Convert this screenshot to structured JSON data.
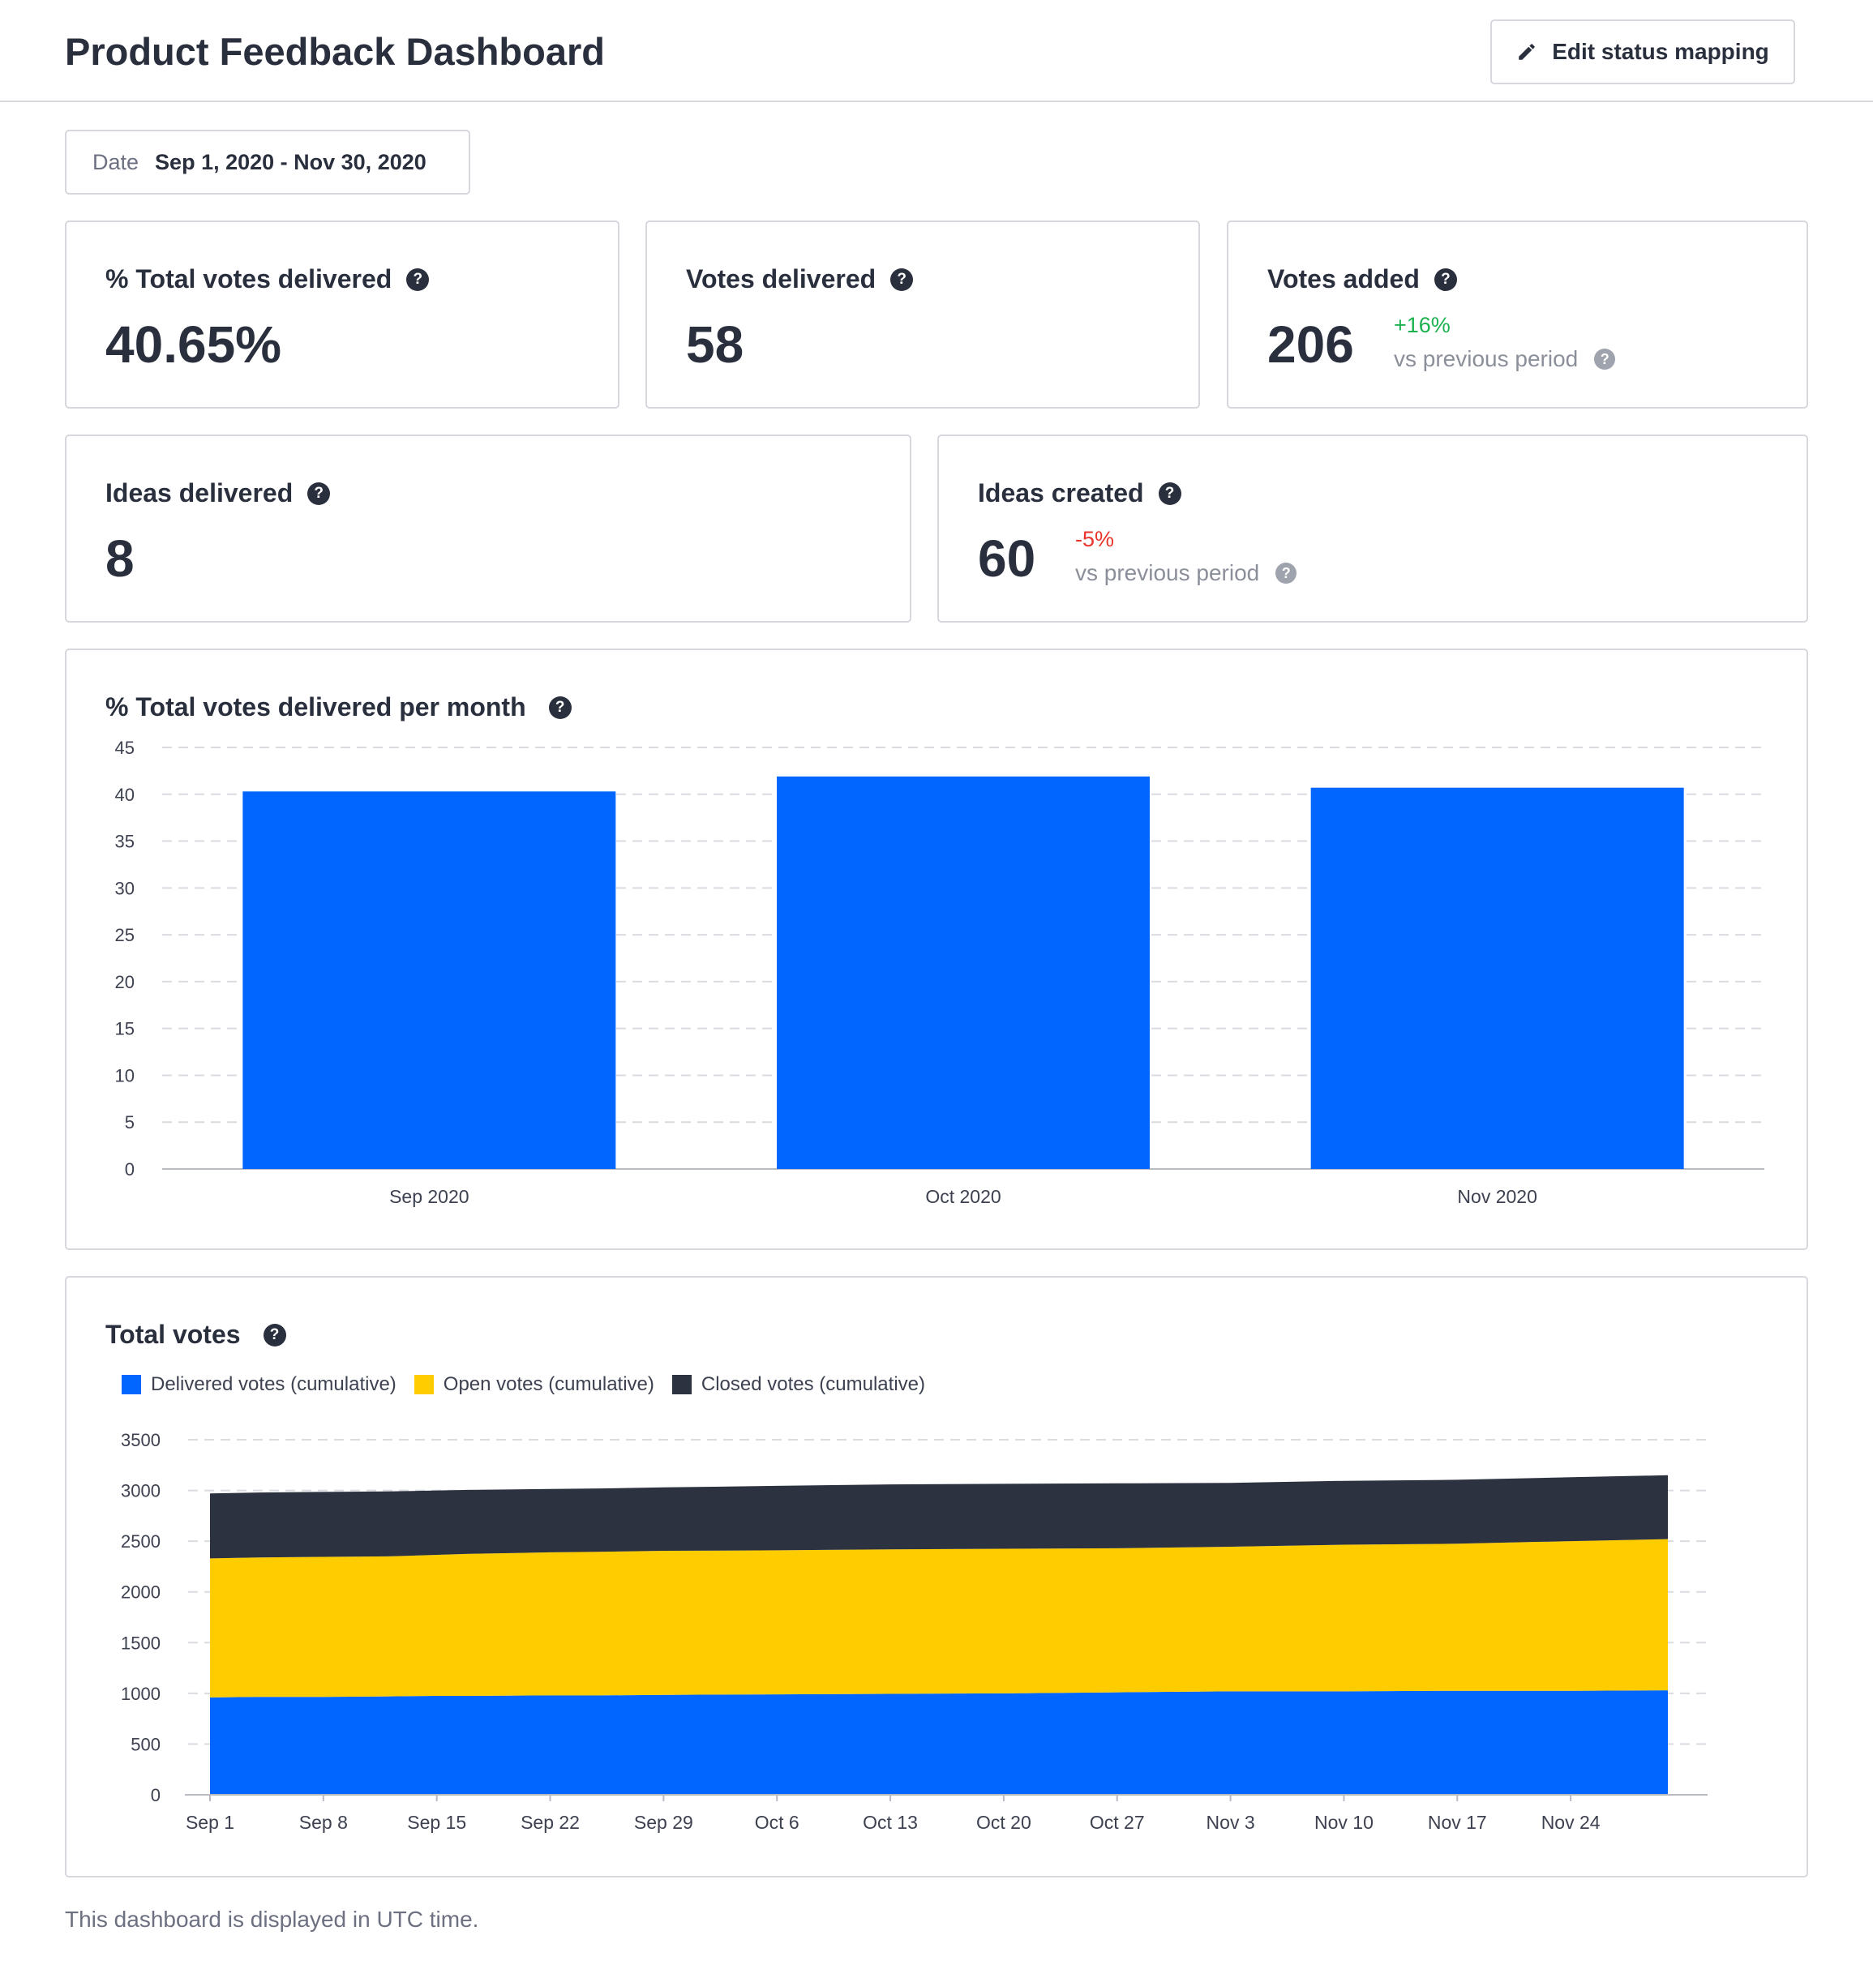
{
  "header": {
    "title": "Product Feedback Dashboard",
    "edit_button_label": "Edit status mapping",
    "edit_button_icon": "pencil-icon"
  },
  "date_filter": {
    "label": "Date",
    "value": "Sep 1, 2020 - Nov 30, 2020"
  },
  "metrics": {
    "total_votes_delivered_pct": {
      "title": "% Total votes delivered",
      "value": "40.65%"
    },
    "votes_delivered": {
      "title": "Votes delivered",
      "value": "58"
    },
    "votes_added": {
      "title": "Votes added",
      "value": "206",
      "change": "+16%",
      "comparison": "vs previous period"
    },
    "ideas_delivered": {
      "title": "Ideas delivered",
      "value": "8"
    },
    "ideas_created": {
      "title": "Ideas created",
      "value": "60",
      "change": "-5%",
      "comparison": "vs previous period"
    }
  },
  "colors": {
    "blue": "#0066ff",
    "yellow": "#ffcc00",
    "dark": "#2d3240",
    "positive": "#1ab14f",
    "negative": "#e9342b"
  },
  "chart_data": [
    {
      "type": "bar",
      "title": "% Total votes delivered per month",
      "categories": [
        "Sep 2020",
        "Oct 2020",
        "Nov 2020"
      ],
      "values": [
        40.3,
        41.9,
        40.7
      ],
      "ylim": [
        0,
        45
      ],
      "yticks": [
        0,
        5,
        10,
        15,
        20,
        25,
        30,
        35,
        40,
        45
      ],
      "grid": true
    },
    {
      "type": "area",
      "title": "Total votes",
      "stacked": true,
      "x": [
        "Sep 1",
        "Sep 4",
        "Sep 8",
        "Sep 12",
        "Sep 15",
        "Sep 17",
        "Sep 22",
        "Sep 25",
        "Sep 29",
        "Oct 6",
        "Oct 13",
        "Oct 20",
        "Oct 27",
        "Nov 3",
        "Nov 10",
        "Nov 17",
        "Nov 24",
        "Nov 30"
      ],
      "x_ticks": [
        "Sep 1",
        "Sep 8",
        "Sep 15",
        "Sep 22",
        "Sep 29",
        "Oct 6",
        "Oct 13",
        "Oct 20",
        "Oct 27",
        "Nov 3",
        "Nov 10",
        "Nov 17",
        "Nov 24"
      ],
      "series": [
        {
          "name": "Delivered votes (cumulative)",
          "color": "#0066ff",
          "values": [
            960,
            965,
            965,
            970,
            975,
            975,
            980,
            980,
            985,
            990,
            995,
            1000,
            1010,
            1020,
            1020,
            1025,
            1025,
            1030
          ]
        },
        {
          "name": "Open votes (cumulative)",
          "color": "#ffcc00",
          "values": [
            1370,
            1375,
            1380,
            1380,
            1390,
            1400,
            1410,
            1415,
            1420,
            1420,
            1425,
            1425,
            1420,
            1425,
            1445,
            1450,
            1475,
            1490
          ]
        },
        {
          "name": "Closed votes (cumulative)",
          "color": "#2d3240",
          "values": [
            640,
            640,
            640,
            640,
            635,
            630,
            625,
            625,
            625,
            635,
            640,
            640,
            640,
            630,
            630,
            630,
            630,
            630
          ]
        }
      ],
      "ylim": [
        0,
        3500
      ],
      "yticks": [
        0,
        500,
        1000,
        1500,
        2000,
        2500,
        3000,
        3500
      ],
      "legend": "top-left",
      "grid": true
    }
  ],
  "footer": {
    "note": "This dashboard is displayed in UTC time."
  }
}
